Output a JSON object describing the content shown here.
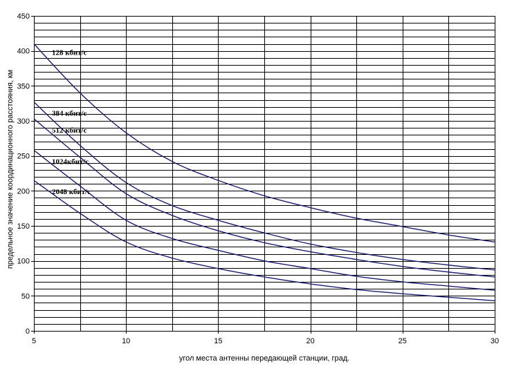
{
  "chart_data": {
    "type": "line",
    "title": "",
    "xlabel": "угол места антенны передающей станции, град.",
    "ylabel": "предельное значение координационного расстояния, км",
    "xlim": [
      5,
      30
    ],
    "ylim": [
      0,
      450
    ],
    "xticks": [
      5,
      10,
      15,
      20,
      25,
      30
    ],
    "yticks": [
      0,
      50,
      100,
      150,
      200,
      250,
      300,
      350,
      400,
      450
    ],
    "grid": true,
    "legend": "none",
    "line_color": "#1c1c6e",
    "series": [
      {
        "name": "128 кбит/с",
        "x": [
          5,
          7.5,
          10,
          12.5,
          15,
          17.5,
          20,
          22.5,
          25,
          27.5,
          30
        ],
        "y": [
          410,
          340,
          283,
          242,
          215,
          193,
          176,
          161,
          149,
          137,
          127
        ]
      },
      {
        "name": "384 кбит/с",
        "x": [
          5,
          7.5,
          10,
          12.5,
          15,
          17.5,
          20,
          22.5,
          25,
          27.5,
          30
        ],
        "y": [
          327,
          265,
          212,
          179,
          158,
          140,
          124,
          112,
          102,
          94,
          87
        ]
      },
      {
        "name": "512 кбит/с",
        "x": [
          5,
          7.5,
          10,
          12.5,
          15,
          17.5,
          20,
          22.5,
          25,
          27.5,
          30
        ],
        "y": [
          303,
          248,
          196,
          165,
          143,
          126,
          113,
          102,
          92,
          84,
          77
        ]
      },
      {
        "name": "1024кбит/с",
        "x": [
          5,
          7.5,
          10,
          12.5,
          15,
          17.5,
          20,
          22.5,
          25,
          27.5,
          30
        ],
        "y": [
          258,
          207,
          158,
          132,
          115,
          100,
          89,
          78,
          70,
          64,
          58
        ]
      },
      {
        "name": "2048 кбит/с",
        "x": [
          5,
          7.5,
          10,
          12.5,
          15,
          17.5,
          20,
          22.5,
          25,
          27.5,
          30
        ],
        "y": [
          215,
          168,
          127,
          104,
          89,
          77,
          67,
          59,
          53,
          48,
          43
        ]
      }
    ]
  }
}
